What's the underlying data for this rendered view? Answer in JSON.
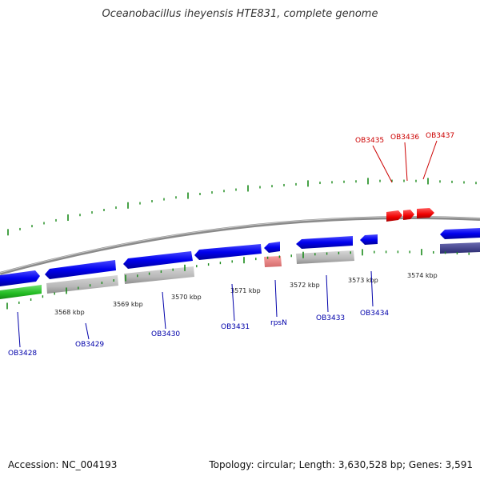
{
  "title": "Oceanobacillus iheyensis HTE831, complete genome",
  "footer": {
    "accession": "Accession: NC_004193",
    "topology": "Topology: circular; Length: 3,630,528 bp; Genes: 3,591"
  },
  "colors": {
    "backbone": "#8a8a8a",
    "tick": "#1a8a1a",
    "forward_gene": "#0000ee",
    "reverse_gene": "#b8b8b8",
    "rna_gene": "#e02020",
    "label_blue": "#0000aa",
    "label_red": "#cc0000"
  },
  "scale_labels": [
    "3568 kbp",
    "3569 kbp",
    "3570 kbp",
    "3571 kbp",
    "3572 kbp",
    "3573 kbp",
    "3574 kbp"
  ],
  "gene_labels": {
    "blue": [
      "OB3428",
      "OB3429",
      "OB3430",
      "OB3431",
      "rpsN",
      "OB3433",
      "OB3434"
    ],
    "red": [
      "OB3435",
      "OB3436",
      "OB3437"
    ]
  }
}
